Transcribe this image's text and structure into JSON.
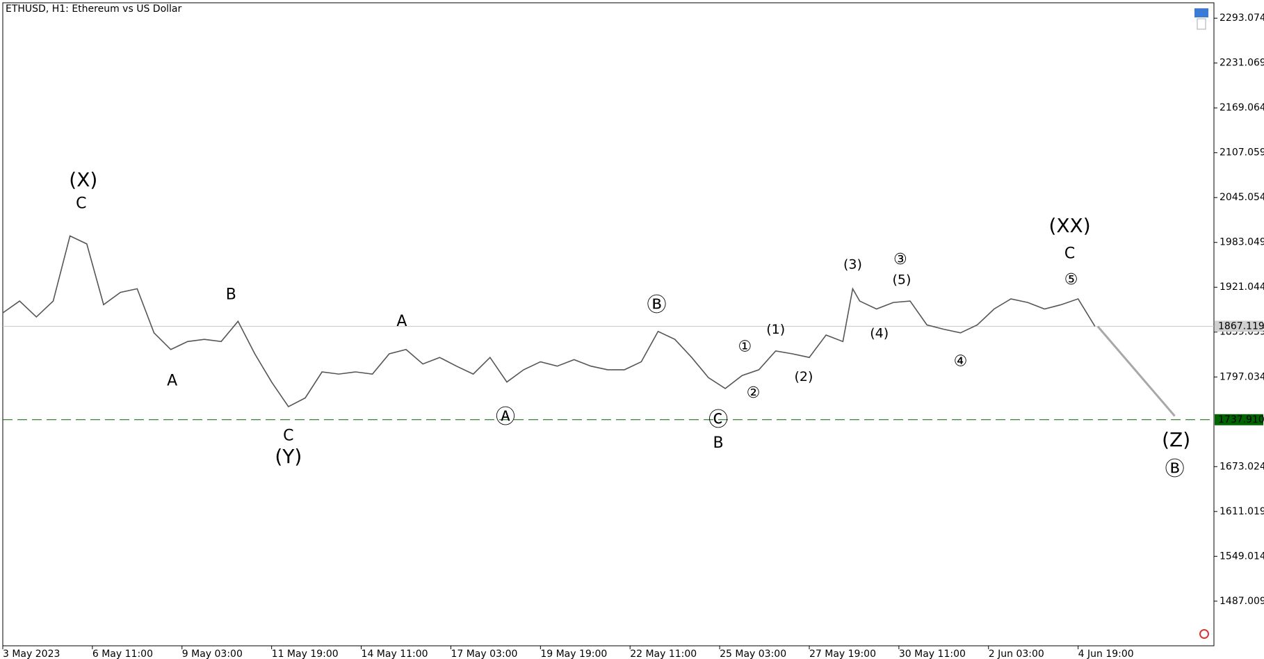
{
  "chart_data": {
    "type": "line",
    "title": "ETHUSD, H1:  Ethereum vs US Dollar",
    "xlim": [
      0,
      865
    ],
    "ylim": [
      1425.3,
      2314.4
    ],
    "xticks": [
      {
        "value": 0,
        "label": "3 May 2023"
      },
      {
        "value": 64,
        "label": "6 May 11:00"
      },
      {
        "value": 128,
        "label": "9 May 03:00"
      },
      {
        "value": 192,
        "label": "11 May 19:00"
      },
      {
        "value": 256,
        "label": "14 May 11:00"
      },
      {
        "value": 320,
        "label": "17 May 03:00"
      },
      {
        "value": 384,
        "label": "19 May 19:00"
      },
      {
        "value": 448,
        "label": "22 May 11:00"
      },
      {
        "value": 512,
        "label": "25 May 03:00"
      },
      {
        "value": 576,
        "label": "27 May 19:00"
      },
      {
        "value": 640,
        "label": "30 May 11:00"
      },
      {
        "value": 704,
        "label": "2 Jun 03:00"
      },
      {
        "value": 768,
        "label": "4 Jun 19:00"
      }
    ],
    "yticks": [
      2293.074,
      2231.069,
      2169.064,
      2107.059,
      2045.054,
      1983.049,
      1921.044,
      1859.039,
      1797.034,
      1673.024,
      1611.019,
      1549.014,
      1487.009
    ],
    "series": [
      {
        "color": "#555555",
        "x": [
          0,
          12,
          24,
          36,
          48,
          60,
          72,
          84,
          96,
          108,
          120,
          132,
          144,
          156,
          168,
          180,
          192,
          204,
          216,
          228,
          240,
          252,
          264,
          276,
          288,
          300,
          312,
          324,
          336,
          348,
          360,
          372,
          384,
          396,
          408,
          420,
          432,
          444,
          456,
          468,
          480,
          492,
          504,
          516,
          528,
          540,
          552,
          564,
          576,
          588,
          600,
          607,
          612,
          624,
          636,
          648,
          660,
          672,
          684,
          696,
          708,
          720,
          732,
          744,
          756,
          768,
          780
        ],
        "values": [
          1885.6,
          1902,
          1880,
          1902,
          1992,
          1981,
          1897,
          1914,
          1919,
          1858,
          1835,
          1846,
          1849,
          1846,
          1874,
          1829,
          1790,
          1756,
          1768,
          1804,
          1801,
          1804,
          1801,
          1829,
          1835,
          1815,
          1824,
          1812,
          1801,
          1824,
          1790,
          1807,
          1818,
          1812,
          1821,
          1812,
          1807,
          1807,
          1818,
          1860,
          1849,
          1824,
          1796,
          1781,
          1799,
          1807,
          1833,
          1829,
          1824,
          1855,
          1846,
          1919,
          1902,
          1891,
          1900,
          1902,
          1869,
          1863,
          1858,
          1869,
          1891,
          1905,
          1900,
          1891,
          1897,
          1905,
          1867
        ]
      }
    ],
    "price_line": 1867.119,
    "level_line": {
      "value": 1737.91,
      "label": "1737.910",
      "color": "#006400"
    },
    "projection": {
      "color": "#a8a8a8",
      "x": [
        782,
        837
      ],
      "values": [
        1867,
        1743
      ]
    },
    "annotations": [
      {
        "text": "(X)",
        "x": 57.5,
        "y": 2068.5,
        "color": "#191970",
        "size": "large"
      },
      {
        "text": "C",
        "x": 56,
        "y": 2036,
        "color": "#8b0000",
        "size": "medium"
      },
      {
        "text": "B",
        "x": 163,
        "y": 1910,
        "color": "#8b0000",
        "size": "medium"
      },
      {
        "text": "A",
        "x": 121,
        "y": 1791,
        "color": "#8b0000",
        "size": "medium"
      },
      {
        "text": "C",
        "x": 204,
        "y": 1715,
        "color": "#8b0000",
        "size": "medium"
      },
      {
        "text": "(Y)",
        "x": 204,
        "y": 1686,
        "color": "#191970",
        "size": "large"
      },
      {
        "text": "A",
        "x": 285,
        "y": 1873,
        "color": "#8b0000",
        "size": "medium"
      },
      {
        "text": "Ⓐ",
        "x": 359,
        "y": 1741,
        "color": "#006400",
        "size": "large"
      },
      {
        "text": "Ⓑ",
        "x": 467,
        "y": 1896,
        "color": "#006400",
        "size": "large"
      },
      {
        "text": "Ⓒ",
        "x": 511,
        "y": 1737,
        "color": "#006400",
        "size": "large"
      },
      {
        "text": "B",
        "x": 511,
        "y": 1705,
        "color": "#8b0000",
        "size": "medium"
      },
      {
        "text": "①",
        "x": 530,
        "y": 1838,
        "color": "#006400",
        "size": "medium"
      },
      {
        "text": "②",
        "x": 536,
        "y": 1774,
        "color": "#006400",
        "size": "medium"
      },
      {
        "text": "(1)",
        "x": 552,
        "y": 1862,
        "color": "#191970",
        "size": "small"
      },
      {
        "text": "(2)",
        "x": 572,
        "y": 1797,
        "color": "#191970",
        "size": "small"
      },
      {
        "text": "(3)",
        "x": 607,
        "y": 1952,
        "color": "#191970",
        "size": "small"
      },
      {
        "text": "③",
        "x": 641,
        "y": 1959,
        "color": "#006400",
        "size": "medium"
      },
      {
        "text": "(5)",
        "x": 642,
        "y": 1931,
        "color": "#191970",
        "size": "small"
      },
      {
        "text": "(4)",
        "x": 626,
        "y": 1857,
        "color": "#191970",
        "size": "small"
      },
      {
        "text": "④",
        "x": 684,
        "y": 1818,
        "color": "#006400",
        "size": "medium"
      },
      {
        "text": "(XX)",
        "x": 762,
        "y": 2005,
        "color": "#191970",
        "size": "large"
      },
      {
        "text": "C",
        "x": 762,
        "y": 1967,
        "color": "#8b0000",
        "size": "medium"
      },
      {
        "text": "⑤",
        "x": 763,
        "y": 1931,
        "color": "#006400",
        "size": "medium"
      },
      {
        "text": "(Z)",
        "x": 838,
        "y": 1709,
        "color": "#191970",
        "size": "large"
      },
      {
        "text": "Ⓑ",
        "x": 837,
        "y": 1669,
        "color": "#006400",
        "size": "large"
      }
    ]
  }
}
